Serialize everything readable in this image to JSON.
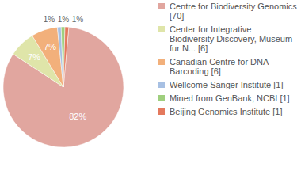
{
  "chart_data": {
    "type": "pie",
    "categories": [
      "Centre for Biodiversity Genomics [70]",
      "Center for Integrative Biodiversity Discovery, Museum fur N... [6]",
      "Canadian Centre for DNA Barcoding [6]",
      "Wellcome Sanger Institute [1]",
      "Mined from GenBank, NCBI [1]",
      "Beijing Genomics Institute [1]"
    ],
    "values": [
      82,
      7,
      7,
      1,
      1,
      1
    ],
    "value_labels": [
      "82%",
      "7%",
      "7%",
      "1%",
      "1%",
      "1%"
    ],
    "colors": [
      "#e1a69f",
      "#dfe5a9",
      "#f2b07b",
      "#a7c0e3",
      "#9fcf7e",
      "#e4795d"
    ],
    "data_labels": true,
    "legend": "right"
  }
}
